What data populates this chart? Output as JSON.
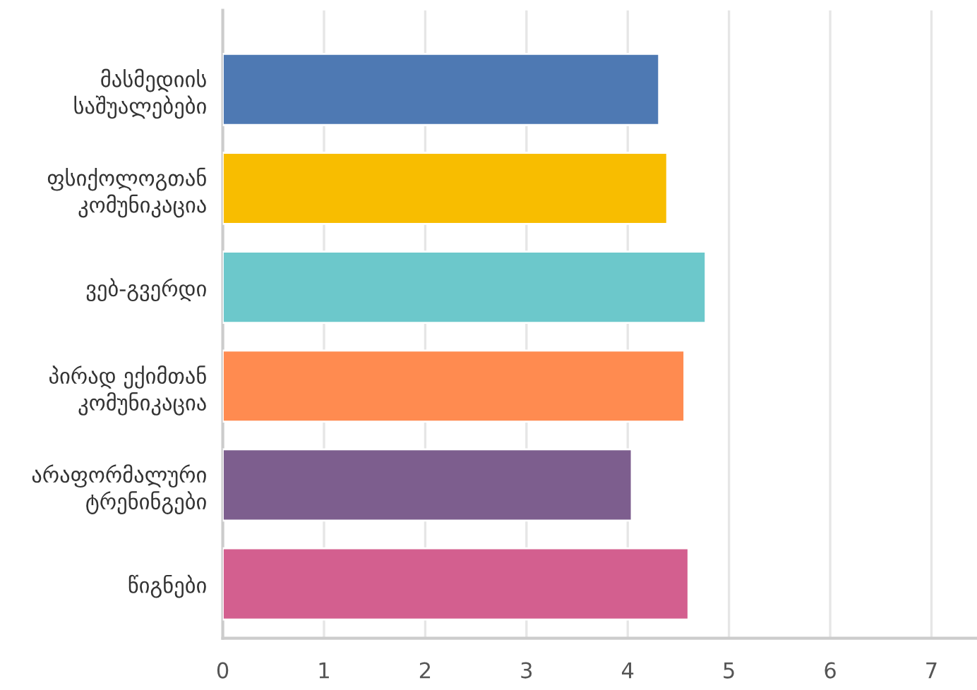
{
  "chart_data": {
    "type": "bar",
    "orientation": "horizontal",
    "categories": [
      "მასმედიის\nსაშუალებები",
      "ფსიქოლოგთან\nკომუნიკაცია",
      "ვებ-გვერდი",
      "პირად ექიმთან\nკომუნიკაცია",
      "არაფორმალური\nტრენინგები",
      "წიგნები"
    ],
    "values": [
      4.31,
      4.39,
      4.77,
      4.56,
      4.04,
      4.6
    ],
    "colors": [
      "#4e79b3",
      "#f8bd00",
      "#6cc8cb",
      "#ff8b50",
      "#7d5e8e",
      "#d35f8f"
    ],
    "xlim": [
      0,
      7.45
    ],
    "xticks": [
      0,
      1,
      2,
      3,
      4,
      5,
      6,
      7
    ],
    "grid": "x",
    "legend": false
  }
}
